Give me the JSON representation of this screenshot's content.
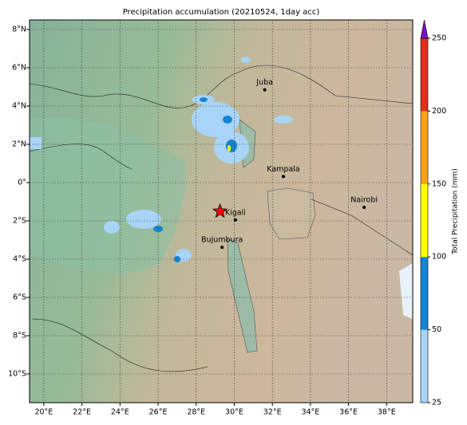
{
  "map": {
    "title": "Precipitation accumulation (20210524, 1day acc)",
    "lonlim": [
      19.25,
      39.37
    ],
    "latlim": [
      -11.5,
      8.5
    ],
    "xticks": [
      {
        "value": 20,
        "label": "20°E"
      },
      {
        "value": 22,
        "label": "22°E"
      },
      {
        "value": 24,
        "label": "24°E"
      },
      {
        "value": 26,
        "label": "26°E"
      },
      {
        "value": 28,
        "label": "28°E"
      },
      {
        "value": 30,
        "label": "30°E"
      },
      {
        "value": 32,
        "label": "32°E"
      },
      {
        "value": 34,
        "label": "34°E"
      },
      {
        "value": 36,
        "label": "36°E"
      },
      {
        "value": 38,
        "label": "38°E"
      }
    ],
    "yticks": [
      {
        "value": 8,
        "label": "8°N"
      },
      {
        "value": 6,
        "label": "6°N"
      },
      {
        "value": 4,
        "label": "4°N"
      },
      {
        "value": 2,
        "label": "2°N"
      },
      {
        "value": 0,
        "label": "0°"
      },
      {
        "value": -2,
        "label": "2°S"
      },
      {
        "value": -4,
        "label": "4°S"
      },
      {
        "value": -6,
        "label": "6°S"
      },
      {
        "value": -8,
        "label": "8°S"
      },
      {
        "value": -10,
        "label": "10°S"
      }
    ],
    "cities": [
      {
        "name": "Juba",
        "lon": 31.6,
        "lat": 4.85
      },
      {
        "name": "Kampala",
        "lon": 32.58,
        "lat": 0.32
      },
      {
        "name": "Nairobi",
        "lon": 36.82,
        "lat": -1.29
      },
      {
        "name": "Kigali",
        "lon": 30.06,
        "lat": -1.95
      },
      {
        "name": "Bujumbura",
        "lon": 29.36,
        "lat": -3.38
      }
    ],
    "marker": {
      "lon": 29.25,
      "lat": -1.5,
      "color": "#ff0000"
    },
    "colorbar": {
      "label": "Total Precipitation (mm)",
      "levels": [
        25,
        50,
        100,
        150,
        200,
        250
      ],
      "colors": [
        "#a8d4f7",
        "#1684d2",
        "#ffff00",
        "#f7a21e",
        "#e0301e"
      ],
      "extend_color": "#7a10c8"
    }
  }
}
